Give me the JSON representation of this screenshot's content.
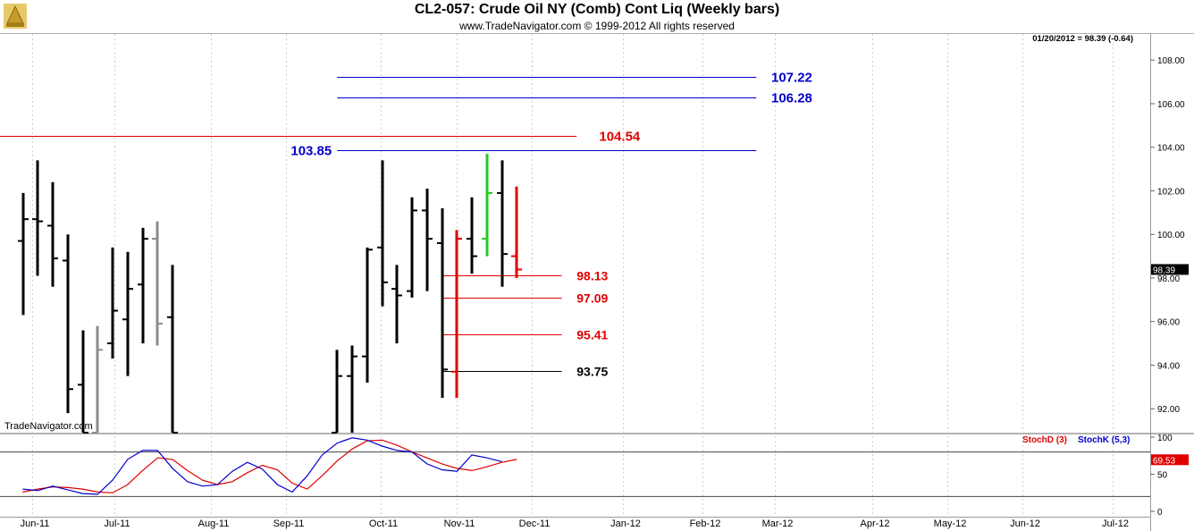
{
  "chart_data": {
    "type": "bar",
    "title": "CL2-057:  Crude Oil NY (Comb) Cont Liq  (Weekly bars)",
    "subtitle": "www.TradeNavigator.com © 1999-2012 All rights reserved",
    "quote": "01/20/2012 = 98.39 (-0.64)",
    "watermark": "TradeNavigator.com",
    "x_labels": [
      "Jun-11",
      "Jul-11",
      "Aug-11",
      "Sep-11",
      "Oct-11",
      "Nov-11",
      "Dec-11",
      "Jan-12",
      "Feb-12",
      "Mar-12",
      "Apr-12",
      "May-12",
      "Jun-12",
      "Jul-12"
    ],
    "y_ticks": [
      "108.00",
      "106.00",
      "104.00",
      "102.00",
      "100.00",
      "98.00",
      "96.00",
      "94.00",
      "92.00"
    ],
    "ylim": [
      90.9,
      109.2
    ],
    "last_price": "98.39",
    "colors": {
      "bar": "#000000",
      "gray": "#8c8c8c",
      "red": "#e00000",
      "green": "#22cc22",
      "blue": "#0000cc",
      "stochD": "#e00000",
      "stochK": "#0000cc"
    },
    "bars": [
      {
        "week": 0,
        "high": 101.9,
        "low": 96.3,
        "open": 99.7,
        "close": 100.7,
        "color": "bar"
      },
      {
        "week": 1,
        "high": 103.4,
        "low": 98.1,
        "open": 100.7,
        "close": 100.6,
        "color": "bar"
      },
      {
        "week": 2,
        "high": 102.4,
        "low": 97.6,
        "open": 100.4,
        "close": 98.9,
        "color": "bar"
      },
      {
        "week": 3,
        "high": 100.0,
        "low": 91.8,
        "open": 98.8,
        "close": 92.9,
        "color": "bar"
      },
      {
        "week": 4,
        "high": 95.6,
        "low": 90.9,
        "open": 93.1,
        "close": 90.9,
        "color": "bar"
      },
      {
        "week": 5,
        "high": 95.8,
        "low": 90.9,
        "open": 90.9,
        "close": 94.7,
        "color": "gray"
      },
      {
        "week": 6,
        "high": 99.4,
        "low": 94.3,
        "open": 95.0,
        "close": 96.5,
        "color": "bar"
      },
      {
        "week": 7,
        "high": 99.2,
        "low": 93.5,
        "open": 96.1,
        "close": 97.5,
        "color": "bar"
      },
      {
        "week": 8,
        "high": 100.3,
        "low": 95.0,
        "open": 97.7,
        "close": 99.8,
        "color": "bar"
      },
      {
        "week": 9,
        "high": 100.6,
        "low": 94.9,
        "open": 99.8,
        "close": 95.9,
        "color": "gray"
      },
      {
        "week": 10,
        "high": 98.6,
        "low": 90.9,
        "open": 96.2,
        "close": 90.9,
        "color": "bar"
      },
      {
        "week": 21,
        "high": 94.7,
        "low": 90.9,
        "open": 90.9,
        "close": 93.5,
        "color": "bar"
      },
      {
        "week": 22,
        "high": 94.9,
        "low": 90.9,
        "open": 93.5,
        "close": 94.4,
        "color": "bar"
      },
      {
        "week": 23,
        "high": 99.4,
        "low": 93.2,
        "open": 94.4,
        "close": 99.3,
        "color": "bar"
      },
      {
        "week": 24,
        "high": 103.4,
        "low": 96.7,
        "open": 99.4,
        "close": 97.8,
        "color": "bar"
      },
      {
        "week": 25,
        "high": 98.6,
        "low": 95.0,
        "open": 97.5,
        "close": 97.2,
        "color": "bar"
      },
      {
        "week": 26,
        "high": 101.7,
        "low": 97.1,
        "open": 97.4,
        "close": 101.1,
        "color": "bar"
      },
      {
        "week": 27,
        "high": 102.1,
        "low": 97.4,
        "open": 101.1,
        "close": 99.8,
        "color": "bar"
      },
      {
        "week": 28,
        "high": 101.2,
        "low": 92.5,
        "open": 99.6,
        "close": 93.8,
        "color": "bar"
      },
      {
        "week": 29,
        "high": 100.2,
        "low": 92.5,
        "open": 93.7,
        "close": 99.8,
        "color": "red"
      },
      {
        "week": 30,
        "high": 101.7,
        "low": 98.2,
        "open": 99.8,
        "close": 99.0,
        "color": "bar"
      },
      {
        "week": 31,
        "high": 103.7,
        "low": 99.0,
        "open": 99.8,
        "close": 101.9,
        "color": "green"
      },
      {
        "week": 32,
        "high": 103.4,
        "low": 97.6,
        "open": 101.9,
        "close": 99.1,
        "color": "bar"
      },
      {
        "week": 33,
        "high": 102.2,
        "low": 98.0,
        "open": 99.0,
        "close": 98.39,
        "color": "red"
      }
    ],
    "levels": [
      {
        "value": 107.22,
        "label": "107.22",
        "color": "blue",
        "from_week": 21,
        "to_week": 49,
        "label_side": "right",
        "label_week": 50
      },
      {
        "value": 106.28,
        "label": "106.28",
        "color": "blue",
        "from_week": 21,
        "to_week": 49,
        "label_side": "right",
        "label_week": 50
      },
      {
        "value": 104.54,
        "label": "104.54",
        "color": "red",
        "from_week": -2,
        "to_week": 37,
        "label_side": "right",
        "label_week": 38.5
      },
      {
        "value": 103.85,
        "label": "103.85",
        "color": "blue",
        "from_week": 21,
        "to_week": 49,
        "label_side": "left",
        "label_week": 21
      },
      {
        "value": 98.13,
        "label": "98.13",
        "color": "red",
        "from_week": 28,
        "to_week": 36,
        "label_side": "right",
        "label_week": 37
      },
      {
        "value": 97.09,
        "label": "97.09",
        "color": "red",
        "from_week": 28,
        "to_week": 36,
        "label_side": "right",
        "label_week": 37
      },
      {
        "value": 95.41,
        "label": "95.41",
        "color": "red",
        "from_week": 28,
        "to_week": 36,
        "label_side": "right",
        "label_week": 37
      },
      {
        "value": 93.75,
        "label": "93.75",
        "color": "bar",
        "from_week": 28,
        "to_week": 36,
        "label_side": "right",
        "label_week": 37
      }
    ],
    "stochastic": {
      "ylim": [
        0,
        100
      ],
      "y_ticks": [
        "100",
        "50",
        "0"
      ],
      "guide_lines": [
        80,
        20
      ],
      "legend": [
        "StochD (3)",
        "StochK (5,3)"
      ],
      "last_value": "69.53",
      "stochD": [
        [
          0,
          26
        ],
        [
          1,
          30
        ],
        [
          2,
          33
        ],
        [
          3,
          32
        ],
        [
          4,
          30
        ],
        [
          5,
          26
        ],
        [
          6,
          25
        ],
        [
          7,
          36
        ],
        [
          8,
          55
        ],
        [
          9,
          72
        ],
        [
          10,
          70
        ],
        [
          11,
          55
        ],
        [
          12,
          42
        ],
        [
          13,
          36
        ],
        [
          14,
          40
        ],
        [
          15,
          52
        ],
        [
          16,
          62
        ],
        [
          17,
          56
        ],
        [
          18,
          38
        ],
        [
          19,
          30
        ],
        [
          20,
          48
        ],
        [
          21,
          68
        ],
        [
          22,
          84
        ],
        [
          23,
          95
        ],
        [
          24,
          96
        ],
        [
          25,
          89
        ],
        [
          26,
          80
        ],
        [
          27,
          72
        ],
        [
          28,
          64
        ],
        [
          29,
          58
        ],
        [
          30,
          55
        ],
        [
          31,
          60
        ],
        [
          32,
          66
        ],
        [
          33,
          70
        ]
      ],
      "stochK": [
        [
          0,
          30
        ],
        [
          1,
          28
        ],
        [
          2,
          34
        ],
        [
          3,
          29
        ],
        [
          4,
          24
        ],
        [
          5,
          23
        ],
        [
          6,
          42
        ],
        [
          7,
          70
        ],
        [
          8,
          82
        ],
        [
          9,
          82
        ],
        [
          10,
          58
        ],
        [
          11,
          40
        ],
        [
          12,
          34
        ],
        [
          13,
          36
        ],
        [
          14,
          54
        ],
        [
          15,
          66
        ],
        [
          16,
          57
        ],
        [
          17,
          36
        ],
        [
          18,
          26
        ],
        [
          19,
          48
        ],
        [
          20,
          76
        ],
        [
          21,
          92
        ],
        [
          22,
          99
        ],
        [
          23,
          96
        ],
        [
          24,
          88
        ],
        [
          25,
          82
        ],
        [
          26,
          80
        ],
        [
          27,
          64
        ],
        [
          28,
          56
        ],
        [
          29,
          54
        ],
        [
          30,
          76
        ],
        [
          31,
          72
        ],
        [
          32,
          67
        ]
      ]
    }
  }
}
